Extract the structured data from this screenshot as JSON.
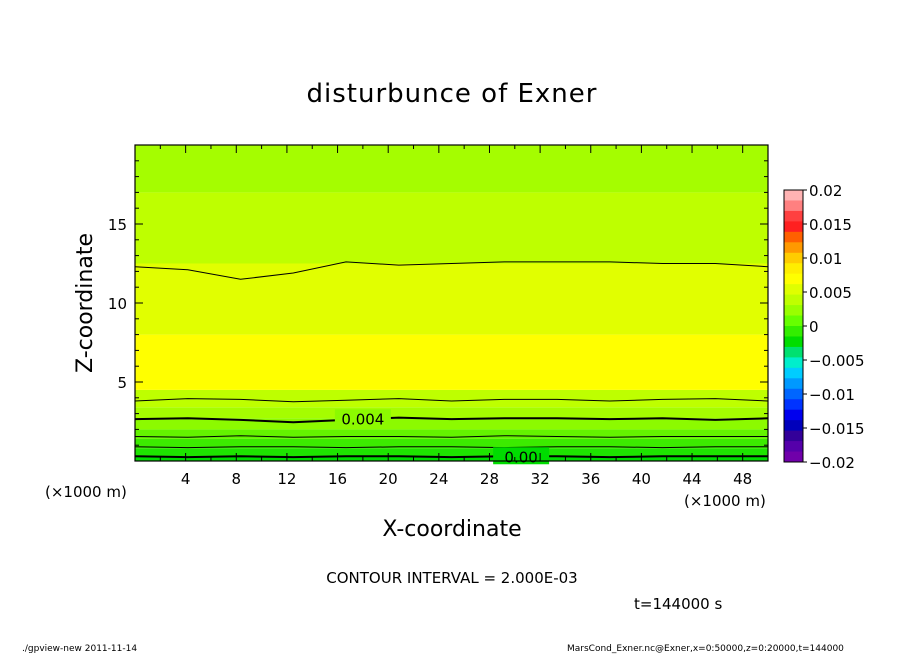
{
  "chart_data": {
    "type": "heatmap",
    "title": "disturbunce of Exner",
    "xlabel": "X-coordinate",
    "ylabel": "Z-coordinate",
    "x_unit": "(×1000 m)",
    "y_unit": "(×1000 m)",
    "xlim": [
      0,
      50
    ],
    "ylim": [
      0,
      20
    ],
    "x_ticks": [
      "4",
      "8",
      "12",
      "16",
      "20",
      "24",
      "28",
      "32",
      "36",
      "40",
      "44",
      "48"
    ],
    "y_ticks": [
      "5",
      "10",
      "15"
    ],
    "bands": [
      {
        "z_range": [
          0.0,
          0.3
        ],
        "value": 0.002
      },
      {
        "z_range": [
          0.3,
          0.8
        ],
        "value": 0.0025
      },
      {
        "z_range": [
          0.8,
          1.4
        ],
        "value": 0.003
      },
      {
        "z_range": [
          1.4,
          2.0
        ],
        "value": 0.0035
      },
      {
        "z_range": [
          2.0,
          2.7
        ],
        "value": 0.004
      },
      {
        "z_range": [
          2.7,
          3.4
        ],
        "value": 0.0045
      },
      {
        "z_range": [
          3.4,
          4.5
        ],
        "value": 0.005
      },
      {
        "z_range": [
          4.5,
          8.0
        ],
        "value": 0.0062
      },
      {
        "z_range": [
          8.0,
          12.5
        ],
        "value": 0.0055
      },
      {
        "z_range": [
          12.5,
          17.0
        ],
        "value": 0.005
      },
      {
        "z_range": [
          17.0,
          20.0
        ],
        "value": 0.0045
      }
    ],
    "contours": [
      {
        "value": "0.00",
        "z": [
          0.3,
          0.25,
          0.3,
          0.25,
          0.3,
          0.3,
          0.25,
          0.3,
          0.3,
          0.25,
          0.3,
          0.3,
          0.3
        ],
        "bold": true,
        "label": true
      },
      {
        "value": "0.002",
        "z": [
          0.9,
          0.85,
          0.9,
          0.9,
          0.85,
          0.9,
          0.9,
          0.85,
          0.9,
          0.9,
          0.85,
          0.9,
          0.9
        ],
        "bold": false,
        "label": false
      },
      {
        "value": "0.003",
        "z": [
          1.55,
          1.5,
          1.6,
          1.5,
          1.55,
          1.55,
          1.5,
          1.6,
          1.55,
          1.5,
          1.55,
          1.55,
          1.55
        ],
        "bold": false,
        "label": false
      },
      {
        "value": "0.004",
        "z": [
          2.65,
          2.7,
          2.6,
          2.45,
          2.6,
          2.75,
          2.65,
          2.7,
          2.7,
          2.65,
          2.7,
          2.6,
          2.7
        ],
        "bold": true,
        "label": true
      },
      {
        "value": "0.005",
        "z": [
          3.8,
          3.95,
          3.9,
          3.75,
          3.85,
          3.95,
          3.8,
          3.9,
          3.9,
          3.8,
          3.9,
          3.95,
          3.8
        ],
        "bold": false,
        "label": false
      },
      {
        "value": "0.005",
        "z": [
          12.3,
          12.1,
          11.5,
          11.9,
          12.6,
          12.4,
          12.5,
          12.6,
          12.6,
          12.6,
          12.5,
          12.5,
          12.3
        ],
        "bold": false,
        "label": false
      }
    ],
    "colorbar": {
      "labels": [
        "0.02",
        "0.015",
        "0.01",
        "0.005",
        "0",
        "−0.005",
        "−0.01",
        "−0.015",
        "−0.02"
      ],
      "colors": [
        "#ffb3b3",
        "#ff8080",
        "#ff4040",
        "#ff2020",
        "#ff6000",
        "#ff9900",
        "#ffcc00",
        "#ffee00",
        "#ffff00",
        "#dfff00",
        "#bfff00",
        "#99ff00",
        "#66ff00",
        "#33ee00",
        "#00dd00",
        "#00e070",
        "#00eecc",
        "#00ccff",
        "#0099ff",
        "#0066ff",
        "#0033ff",
        "#0000ee",
        "#0000bb",
        "#330099",
        "#5500aa",
        "#7000aa"
      ]
    }
  },
  "info": {
    "contour_interval": "CONTOUR INTERVAL = 2.000E-03",
    "time": "t=144000 s"
  },
  "footer": {
    "left": "./gpview-new  2011-11-14",
    "right": "MarsCond_Exner.nc@Exner,x=0:50000,z=0:20000,t=144000"
  }
}
